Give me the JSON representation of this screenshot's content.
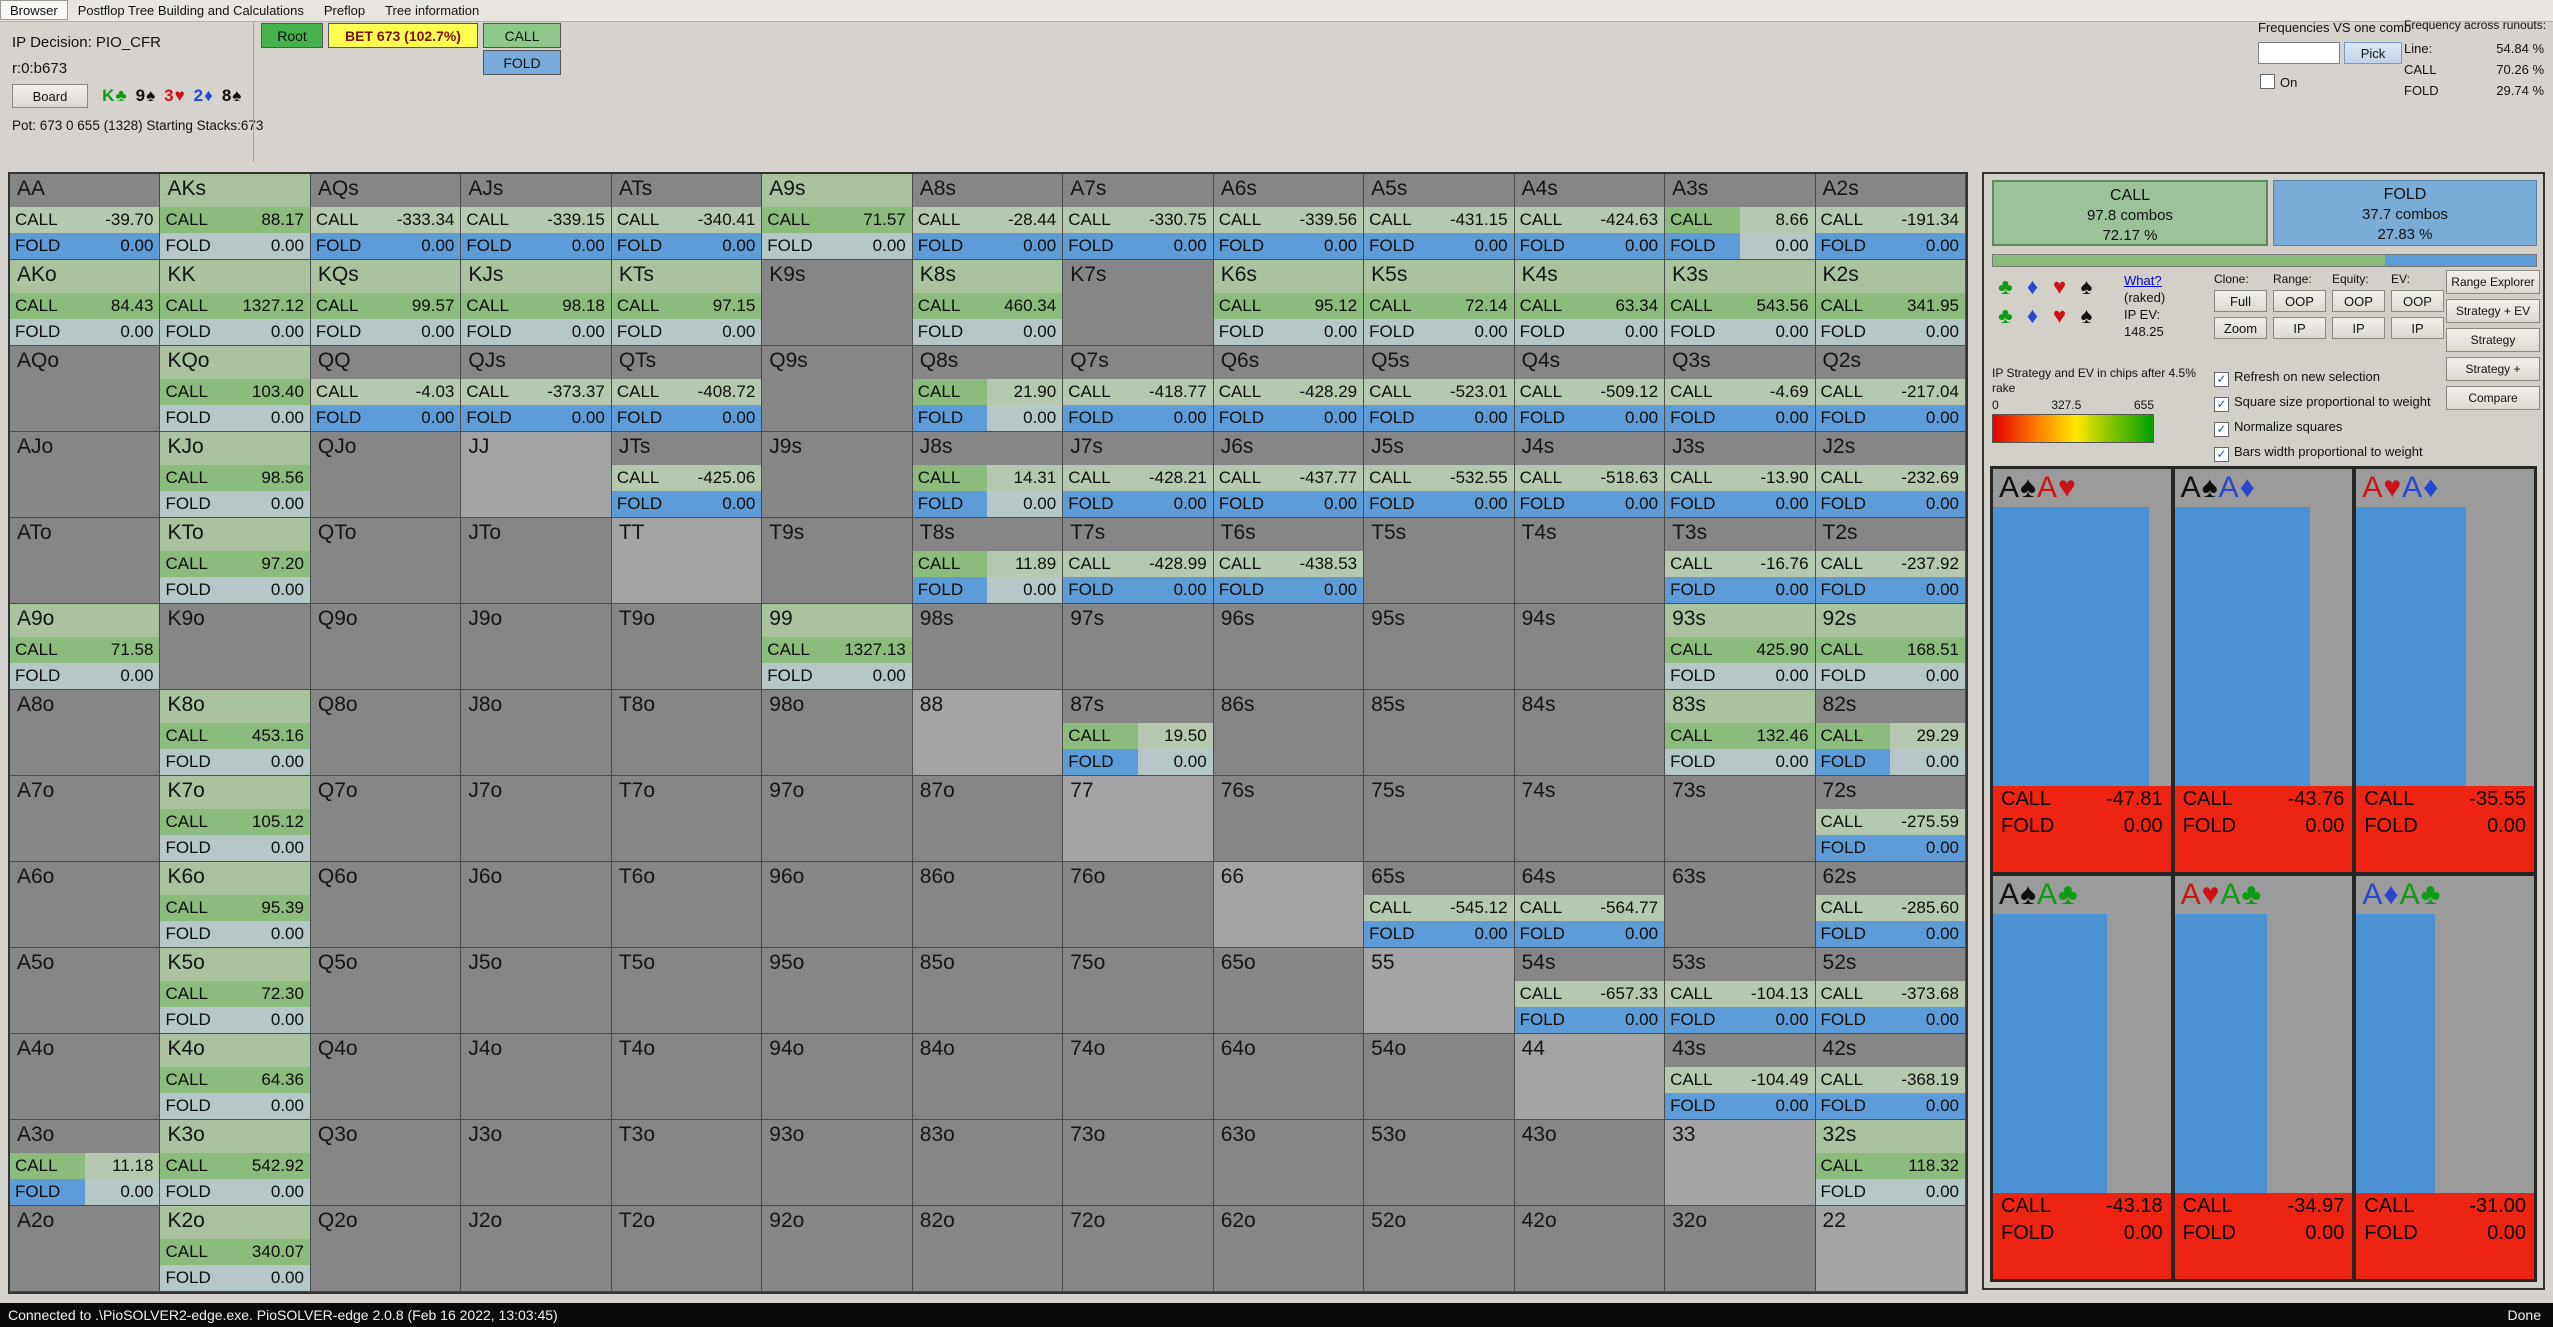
{
  "menu": {
    "items": [
      "Browser",
      "Postflop Tree Building and Calculations",
      "Preflop",
      "Tree information"
    ]
  },
  "info": {
    "decision": "IP Decision:  PIO_CFR",
    "node": "r:0:b673",
    "board_label": "Board",
    "board_cards": [
      {
        "t": "K♣",
        "s": "c"
      },
      {
        "t": "9♠",
        "s": "s"
      },
      {
        "t": "3♥",
        "s": "h"
      },
      {
        "t": "2♦",
        "s": "d"
      },
      {
        "t": "8♠",
        "s": "s"
      }
    ],
    "pot": "Pot: 673 0 655 (1328) Starting Stacks:673"
  },
  "tree": {
    "root": "Root",
    "bet": "BET 673 (102.7%)",
    "call": "CALL",
    "fold": "FOLD"
  },
  "freq": {
    "title": "Frequencies VS one comb",
    "input_value": "",
    "pick": "Pick",
    "on_label": "On",
    "on_checked": false,
    "across_title": "Frequency across runouts:",
    "rows": [
      {
        "label": "Line:",
        "value": "54.84 %"
      },
      {
        "label": "CALL",
        "value": "70.26 %"
      },
      {
        "label": "FOLD",
        "value": "29.74 %"
      }
    ]
  },
  "grid": {
    "call_label": "CALL",
    "fold_label": "FOLD",
    "cell_format": "[hand, call_ev, fold_ev, type] type: c=always-call(green) f=always-fold(blue fold bar) m=mixed e=not-in-range p=pair-not-in-range",
    "rows": [
      [
        [
          "AA",
          "-39.70",
          "0.00",
          "f"
        ],
        [
          "AKs",
          "88.17",
          "0.00",
          "c"
        ],
        [
          "AQs",
          "-333.34",
          "0.00",
          "f"
        ],
        [
          "AJs",
          "-339.15",
          "0.00",
          "f"
        ],
        [
          "ATs",
          "-340.41",
          "0.00",
          "f"
        ],
        [
          "A9s",
          "71.57",
          "0.00",
          "c"
        ],
        [
          "A8s",
          "-28.44",
          "0.00",
          "f"
        ],
        [
          "A7s",
          "-330.75",
          "0.00",
          "f"
        ],
        [
          "A6s",
          "-339.56",
          "0.00",
          "f"
        ],
        [
          "A5s",
          "-431.15",
          "0.00",
          "f"
        ],
        [
          "A4s",
          "-424.63",
          "0.00",
          "f"
        ],
        [
          "A3s",
          "8.66",
          "0.00",
          "m"
        ],
        [
          "A2s",
          "-191.34",
          "0.00",
          "f"
        ]
      ],
      [
        [
          "AKo",
          "84.43",
          "0.00",
          "c"
        ],
        [
          "KK",
          "1327.12",
          "0.00",
          "c"
        ],
        [
          "KQs",
          "99.57",
          "0.00",
          "c"
        ],
        [
          "KJs",
          "98.18",
          "0.00",
          "c"
        ],
        [
          "KTs",
          "97.15",
          "0.00",
          "c"
        ],
        [
          "K9s",
          "",
          "",
          "e"
        ],
        [
          "K8s",
          "460.34",
          "0.00",
          "c"
        ],
        [
          "K7s",
          "",
          "",
          "e"
        ],
        [
          "K6s",
          "95.12",
          "0.00",
          "c"
        ],
        [
          "K5s",
          "72.14",
          "0.00",
          "c"
        ],
        [
          "K4s",
          "63.34",
          "0.00",
          "c"
        ],
        [
          "K3s",
          "543.56",
          "0.00",
          "c"
        ],
        [
          "K2s",
          "341.95",
          "0.00",
          "c"
        ]
      ],
      [
        [
          "AQo",
          "",
          "",
          "e"
        ],
        [
          "KQo",
          "103.40",
          "0.00",
          "c"
        ],
        [
          "QQ",
          "-4.03",
          "0.00",
          "f"
        ],
        [
          "QJs",
          "-373.37",
          "0.00",
          "f"
        ],
        [
          "QTs",
          "-408.72",
          "0.00",
          "f"
        ],
        [
          "Q9s",
          "",
          "",
          "e"
        ],
        [
          "Q8s",
          "21.90",
          "0.00",
          "m"
        ],
        [
          "Q7s",
          "-418.77",
          "0.00",
          "f"
        ],
        [
          "Q6s",
          "-428.29",
          "0.00",
          "f"
        ],
        [
          "Q5s",
          "-523.01",
          "0.00",
          "f"
        ],
        [
          "Q4s",
          "-509.12",
          "0.00",
          "f"
        ],
        [
          "Q3s",
          "-4.69",
          "0.00",
          "f"
        ],
        [
          "Q2s",
          "-217.04",
          "0.00",
          "f"
        ]
      ],
      [
        [
          "AJo",
          "",
          "",
          "e"
        ],
        [
          "KJo",
          "98.56",
          "0.00",
          "c"
        ],
        [
          "QJo",
          "",
          "",
          "e"
        ],
        [
          "JJ",
          "",
          "",
          "p"
        ],
        [
          "JTs",
          "-425.06",
          "0.00",
          "f"
        ],
        [
          "J9s",
          "",
          "",
          "e"
        ],
        [
          "J8s",
          "14.31",
          "0.00",
          "m"
        ],
        [
          "J7s",
          "-428.21",
          "0.00",
          "f"
        ],
        [
          "J6s",
          "-437.77",
          "0.00",
          "f"
        ],
        [
          "J5s",
          "-532.55",
          "0.00",
          "f"
        ],
        [
          "J4s",
          "-518.63",
          "0.00",
          "f"
        ],
        [
          "J3s",
          "-13.90",
          "0.00",
          "f"
        ],
        [
          "J2s",
          "-232.69",
          "0.00",
          "f"
        ]
      ],
      [
        [
          "ATo",
          "",
          "",
          "e"
        ],
        [
          "KTo",
          "97.20",
          "0.00",
          "c"
        ],
        [
          "QTo",
          "",
          "",
          "e"
        ],
        [
          "JTo",
          "",
          "",
          "e"
        ],
        [
          "TT",
          "",
          "",
          "p"
        ],
        [
          "T9s",
          "",
          "",
          "e"
        ],
        [
          "T8s",
          "11.89",
          "0.00",
          "m"
        ],
        [
          "T7s",
          "-428.99",
          "0.00",
          "f"
        ],
        [
          "T6s",
          "-438.53",
          "0.00",
          "f"
        ],
        [
          "T5s",
          "",
          "",
          "e"
        ],
        [
          "T4s",
          "",
          "",
          "e"
        ],
        [
          "T3s",
          "-16.76",
          "0.00",
          "f"
        ],
        [
          "T2s",
          "-237.92",
          "0.00",
          "f"
        ]
      ],
      [
        [
          "A9o",
          "71.58",
          "0.00",
          "c"
        ],
        [
          "K9o",
          "",
          "",
          "e"
        ],
        [
          "Q9o",
          "",
          "",
          "e"
        ],
        [
          "J9o",
          "",
          "",
          "e"
        ],
        [
          "T9o",
          "",
          "",
          "e"
        ],
        [
          "99",
          "1327.13",
          "0.00",
          "c"
        ],
        [
          "98s",
          "",
          "",
          "e"
        ],
        [
          "97s",
          "",
          "",
          "e"
        ],
        [
          "96s",
          "",
          "",
          "e"
        ],
        [
          "95s",
          "",
          "",
          "e"
        ],
        [
          "94s",
          "",
          "",
          "e"
        ],
        [
          "93s",
          "425.90",
          "0.00",
          "c"
        ],
        [
          "92s",
          "168.51",
          "0.00",
          "c"
        ]
      ],
      [
        [
          "A8o",
          "",
          "",
          "e"
        ],
        [
          "K8o",
          "453.16",
          "0.00",
          "c"
        ],
        [
          "Q8o",
          "",
          "",
          "e"
        ],
        [
          "J8o",
          "",
          "",
          "e"
        ],
        [
          "T8o",
          "",
          "",
          "e"
        ],
        [
          "98o",
          "",
          "",
          "e"
        ],
        [
          "88",
          "",
          "",
          "p"
        ],
        [
          "87s",
          "19.50",
          "0.00",
          "m"
        ],
        [
          "86s",
          "",
          "",
          "e"
        ],
        [
          "85s",
          "",
          "",
          "e"
        ],
        [
          "84s",
          "",
          "",
          "e"
        ],
        [
          "83s",
          "132.46",
          "0.00",
          "c"
        ],
        [
          "82s",
          "29.29",
          "0.00",
          "m"
        ]
      ],
      [
        [
          "A7o",
          "",
          "",
          "e"
        ],
        [
          "K7o",
          "105.12",
          "0.00",
          "c"
        ],
        [
          "Q7o",
          "",
          "",
          "e"
        ],
        [
          "J7o",
          "",
          "",
          "e"
        ],
        [
          "T7o",
          "",
          "",
          "e"
        ],
        [
          "97o",
          "",
          "",
          "e"
        ],
        [
          "87o",
          "",
          "",
          "e"
        ],
        [
          "77",
          "",
          "",
          "p"
        ],
        [
          "76s",
          "",
          "",
          "e"
        ],
        [
          "75s",
          "",
          "",
          "e"
        ],
        [
          "74s",
          "",
          "",
          "e"
        ],
        [
          "73s",
          "",
          "",
          "e"
        ],
        [
          "72s",
          "-275.59",
          "0.00",
          "f"
        ]
      ],
      [
        [
          "A6o",
          "",
          "",
          "e"
        ],
        [
          "K6o",
          "95.39",
          "0.00",
          "c"
        ],
        [
          "Q6o",
          "",
          "",
          "e"
        ],
        [
          "J6o",
          "",
          "",
          "e"
        ],
        [
          "T6o",
          "",
          "",
          "e"
        ],
        [
          "96o",
          "",
          "",
          "e"
        ],
        [
          "86o",
          "",
          "",
          "e"
        ],
        [
          "76o",
          "",
          "",
          "e"
        ],
        [
          "66",
          "",
          "",
          "p"
        ],
        [
          "65s",
          "-545.12",
          "0.00",
          "f"
        ],
        [
          "64s",
          "-564.77",
          "0.00",
          "f"
        ],
        [
          "63s",
          "",
          "",
          "e"
        ],
        [
          "62s",
          "-285.60",
          "0.00",
          "f"
        ]
      ],
      [
        [
          "A5o",
          "",
          "",
          "e"
        ],
        [
          "K5o",
          "72.30",
          "0.00",
          "c"
        ],
        [
          "Q5o",
          "",
          "",
          "e"
        ],
        [
          "J5o",
          "",
          "",
          "e"
        ],
        [
          "T5o",
          "",
          "",
          "e"
        ],
        [
          "95o",
          "",
          "",
          "e"
        ],
        [
          "85o",
          "",
          "",
          "e"
        ],
        [
          "75o",
          "",
          "",
          "e"
        ],
        [
          "65o",
          "",
          "",
          "e"
        ],
        [
          "55",
          "",
          "",
          "p"
        ],
        [
          "54s",
          "-657.33",
          "0.00",
          "f"
        ],
        [
          "53s",
          "-104.13",
          "0.00",
          "f"
        ],
        [
          "52s",
          "-373.68",
          "0.00",
          "f"
        ]
      ],
      [
        [
          "A4o",
          "",
          "",
          "e"
        ],
        [
          "K4o",
          "64.36",
          "0.00",
          "c"
        ],
        [
          "Q4o",
          "",
          "",
          "e"
        ],
        [
          "J4o",
          "",
          "",
          "e"
        ],
        [
          "T4o",
          "",
          "",
          "e"
        ],
        [
          "94o",
          "",
          "",
          "e"
        ],
        [
          "84o",
          "",
          "",
          "e"
        ],
        [
          "74o",
          "",
          "",
          "e"
        ],
        [
          "64o",
          "",
          "",
          "e"
        ],
        [
          "54o",
          "",
          "",
          "e"
        ],
        [
          "44",
          "",
          "",
          "p"
        ],
        [
          "43s",
          "-104.49",
          "0.00",
          "f"
        ],
        [
          "42s",
          "-368.19",
          "0.00",
          "f"
        ]
      ],
      [
        [
          "A3o",
          "11.18",
          "0.00",
          "m"
        ],
        [
          "K3o",
          "542.92",
          "0.00",
          "c"
        ],
        [
          "Q3o",
          "",
          "",
          "e"
        ],
        [
          "J3o",
          "",
          "",
          "e"
        ],
        [
          "T3o",
          "",
          "",
          "e"
        ],
        [
          "93o",
          "",
          "",
          "e"
        ],
        [
          "83o",
          "",
          "",
          "e"
        ],
        [
          "73o",
          "",
          "",
          "e"
        ],
        [
          "63o",
          "",
          "",
          "e"
        ],
        [
          "53o",
          "",
          "",
          "e"
        ],
        [
          "43o",
          "",
          "",
          "e"
        ],
        [
          "33",
          "",
          "",
          "p"
        ],
        [
          "32s",
          "118.32",
          "0.00",
          "c"
        ]
      ],
      [
        [
          "A2o",
          "",
          "",
          "e"
        ],
        [
          "K2o",
          "340.07",
          "0.00",
          "c"
        ],
        [
          "Q2o",
          "",
          "",
          "e"
        ],
        [
          "J2o",
          "",
          "",
          "e"
        ],
        [
          "T2o",
          "",
          "",
          "e"
        ],
        [
          "92o",
          "",
          "",
          "e"
        ],
        [
          "82o",
          "",
          "",
          "e"
        ],
        [
          "72o",
          "",
          "",
          "e"
        ],
        [
          "62o",
          "",
          "",
          "e"
        ],
        [
          "52o",
          "",
          "",
          "e"
        ],
        [
          "42o",
          "",
          "",
          "e"
        ],
        [
          "32o",
          "",
          "",
          "e"
        ],
        [
          "22",
          "",
          "",
          "p"
        ]
      ]
    ]
  },
  "side": {
    "call_header": {
      "title": "CALL",
      "combos": "97.8 combos",
      "pct": "72.17 %"
    },
    "fold_header": {
      "title": "FOLD",
      "combos": "37.7 combos",
      "pct": "27.83 %"
    },
    "strip_call_pct": 72.17,
    "suit_glyphs": {
      "c": "♣",
      "d": "♦",
      "h": "♥",
      "s": "♠"
    },
    "suits": [
      [
        "c",
        "d",
        "h",
        "s"
      ],
      [
        "c",
        "d",
        "h",
        "s"
      ]
    ],
    "what": "What?",
    "raked": "(raked)",
    "ip_ev_label": "IP EV:",
    "ip_ev_value": "148.25",
    "col_labels": [
      "Clone:",
      "Range:",
      "Equity:",
      "EV:"
    ],
    "btn_row1": [
      "Full",
      "OOP",
      "OOP",
      "OOP"
    ],
    "btn_row2": [
      "Zoom",
      "IP",
      "IP",
      "IP"
    ],
    "right_buttons": [
      "Range Explorer",
      "Strategy + EV",
      "Strategy",
      "Strategy +",
      "Compare"
    ],
    "rake_note": "IP Strategy and EV in chips after 4.5% rake",
    "checkboxes": [
      {
        "label": "Refresh on new selection",
        "checked": true
      },
      {
        "label": "Square size proportional to weight",
        "checked": true
      },
      {
        "label": "Normalize squares",
        "checked": true
      },
      {
        "label": "Bars width proportional to weight",
        "checked": true
      }
    ],
    "gradient_labels": [
      "0",
      "327.5",
      "655"
    ],
    "combo_call_label": "CALL",
    "combo_fold_label": "FOLD",
    "combos": [
      {
        "cards": [
          {
            "t": "A♠",
            "s": "s"
          },
          {
            "t": "A♥",
            "s": "h"
          }
        ],
        "call": "-47.81",
        "fold": "0.00",
        "bar": 0.88
      },
      {
        "cards": [
          {
            "t": "A♠",
            "s": "s"
          },
          {
            "t": "A♦",
            "s": "d"
          }
        ],
        "call": "-43.76",
        "fold": "0.00",
        "bar": 0.76
      },
      {
        "cards": [
          {
            "t": "A♥",
            "s": "h"
          },
          {
            "t": "A♦",
            "s": "d"
          }
        ],
        "call": "-35.55",
        "fold": "0.00",
        "bar": 0.62
      },
      {
        "cards": [
          {
            "t": "A♠",
            "s": "s"
          },
          {
            "t": "A♣",
            "s": "c"
          }
        ],
        "call": "-43.18",
        "fold": "0.00",
        "bar": 0.64
      },
      {
        "cards": [
          {
            "t": "A♥",
            "s": "h"
          },
          {
            "t": "A♣",
            "s": "c"
          }
        ],
        "call": "-34.97",
        "fold": "0.00",
        "bar": 0.52
      },
      {
        "cards": [
          {
            "t": "A♦",
            "s": "d"
          },
          {
            "t": "A♣",
            "s": "c"
          }
        ],
        "call": "-31.00",
        "fold": "0.00",
        "bar": 0.44
      }
    ]
  },
  "status": {
    "left": "Connected to .\\PioSOLVER2-edge.exe. PioSOLVER-edge 2.0.8 (Feb 16 2022, 13:03:45)",
    "right": "Done"
  }
}
